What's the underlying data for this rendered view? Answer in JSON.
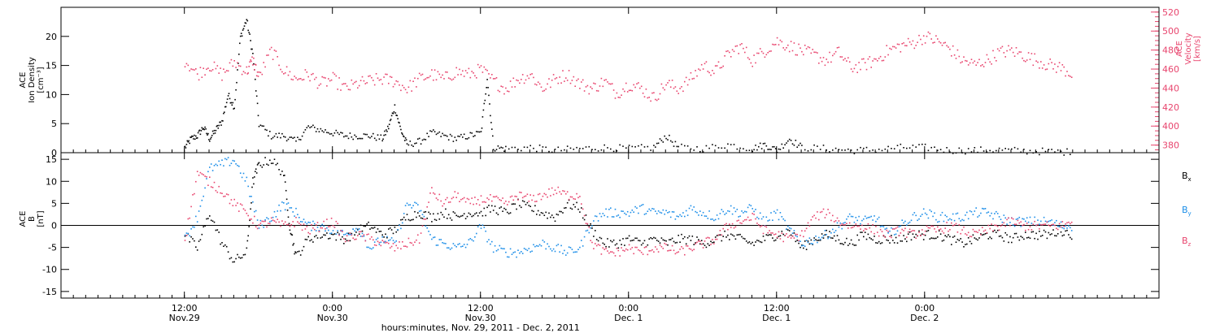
{
  "chart_data": [
    {
      "type": "scatter",
      "title": "",
      "ylabel_lines": [
        "ACE",
        "Ion Density",
        "[cm⁻³]"
      ],
      "ylim": [
        0,
        25
      ],
      "yticks": [
        0,
        5,
        10,
        15,
        20
      ],
      "right_axis": {
        "ylabel_lines": [
          "ACE",
          "Velocity",
          "[km/s]"
        ],
        "ylim": [
          372,
          525
        ],
        "yticks": [
          380,
          400,
          420,
          440,
          460,
          480,
          500,
          520
        ],
        "color": "#e8456e"
      },
      "series": [
        {
          "name": "",
          "axis": "left",
          "color": "#000000",
          "x": [
            0.0,
            0.5,
            1.0,
            1.5,
            2.0,
            2.5,
            3.0,
            3.5,
            4.0,
            4.5,
            5.0,
            5.5,
            6.0,
            7.0,
            8.0,
            9.0,
            10.0,
            11.0,
            12.0,
            13.0,
            14.0,
            15.0,
            16.0,
            16.5,
            17.0,
            17.5,
            18.0,
            19.0,
            20.0,
            21.0,
            22.0,
            23.0,
            24.0,
            24.5,
            25.0,
            26.0,
            28.0,
            30.0,
            32.0,
            34.0,
            36.0,
            38.0,
            39.0,
            40.0,
            42.0,
            44.0,
            46.0,
            47.0,
            48.0,
            49.0,
            50.0,
            52.0,
            54.0,
            56.0,
            58.0,
            60.0,
            62.0,
            64.0,
            66.0,
            68.0,
            70.0,
            72.0
          ],
          "y": [
            1.0,
            2.5,
            3.0,
            4.5,
            2.5,
            4.0,
            5.5,
            10.0,
            8.0,
            20.0,
            23.0,
            17.0,
            5.0,
            3.0,
            3.0,
            2.0,
            4.5,
            4.0,
            3.5,
            3.0,
            3.0,
            3.0,
            2.5,
            4.5,
            8.0,
            4.0,
            1.5,
            2.0,
            3.5,
            3.0,
            2.5,
            3.0,
            3.5,
            13.0,
            1.0,
            0.8,
            1.0,
            0.5,
            0.8,
            1.0,
            0.8,
            1.0,
            3.0,
            1.0,
            0.8,
            1.5,
            0.8,
            1.5,
            0.5,
            2.5,
            1.0,
            0.8,
            0.5,
            0.6,
            1.0,
            1.0,
            0.5,
            0.5,
            0.6,
            0.4,
            0.3,
            0.2
          ]
        },
        {
          "name": "",
          "axis": "right",
          "color": "#e8456e",
          "x": [
            0.0,
            1.0,
            2.0,
            3.0,
            4.0,
            5.0,
            5.5,
            6.0,
            7.0,
            8.0,
            9.0,
            10.0,
            11.0,
            12.0,
            13.0,
            14.0,
            15.0,
            16.0,
            17.0,
            18.0,
            19.0,
            20.0,
            21.0,
            22.0,
            23.0,
            24.0,
            25.0,
            26.0,
            27.0,
            28.0,
            29.0,
            30.0,
            31.0,
            32.0,
            33.0,
            34.0,
            35.0,
            36.0,
            37.0,
            38.0,
            39.0,
            40.0,
            41.0,
            42.0,
            43.0,
            44.0,
            45.0,
            46.0,
            47.0,
            48.0,
            49.0,
            50.0,
            51.0,
            52.0,
            53.0,
            54.0,
            55.0,
            56.0,
            57.0,
            58.0,
            59.0,
            60.0,
            61.0,
            62.0,
            63.0,
            64.0,
            65.0,
            66.0,
            67.0,
            68.0,
            69.0,
            70.0,
            71.0,
            72.0
          ],
          "y": [
            470,
            455,
            465,
            455,
            468,
            458,
            470,
            452,
            480,
            460,
            450,
            455,
            445,
            450,
            440,
            445,
            448,
            450,
            448,
            440,
            450,
            455,
            450,
            458,
            455,
            460,
            448,
            440,
            450,
            455,
            440,
            450,
            455,
            445,
            440,
            448,
            435,
            445,
            440,
            430,
            445,
            440,
            450,
            465,
            458,
            475,
            485,
            470,
            480,
            490,
            485,
            480,
            475,
            470,
            478,
            462,
            465,
            470,
            480,
            485,
            488,
            495,
            490,
            482,
            470,
            465,
            470,
            478,
            480,
            475,
            470,
            465,
            462,
            455
          ]
        }
      ]
    },
    {
      "type": "scatter",
      "title": "",
      "ylabel_lines": [
        "ACE",
        "B",
        "[nT]"
      ],
      "ylim": [
        -16.5,
        16.5
      ],
      "yticks": [
        -15,
        -10,
        -5,
        0,
        5,
        10,
        15
      ],
      "legend_placement": "right",
      "legend": [
        {
          "label": "Bx",
          "color": "#000000"
        },
        {
          "label": "By",
          "color": "#1c8ee8"
        },
        {
          "label": "Bz",
          "color": "#e8456e"
        }
      ],
      "series": [
        {
          "name": "Bx",
          "color": "#000000",
          "x": [
            0.0,
            1.0,
            2.0,
            3.0,
            4.0,
            5.0,
            5.5,
            6.0,
            7.0,
            8.0,
            8.5,
            9.0,
            10.0,
            11.0,
            12.0,
            13.0,
            14.0,
            15.0,
            16.0,
            17.0,
            18.0,
            19.0,
            20.0,
            21.0,
            22.0,
            23.0,
            24.0,
            25.0,
            26.0,
            27.0,
            28.0,
            29.0,
            30.0,
            31.0,
            32.0,
            33.0,
            34.0,
            35.0,
            36.0,
            37.0,
            38.0,
            39.0,
            40.0,
            41.0,
            42.0,
            43.0,
            44.0,
            45.0,
            46.0,
            47.0,
            48.0,
            49.0,
            50.0,
            51.0,
            52.0,
            53.0,
            54.0,
            55.0,
            56.0,
            57.0,
            58.0,
            59.0,
            60.0,
            61.0,
            62.0,
            63.0,
            64.0,
            65.0,
            66.0,
            67.0,
            68.0,
            69.0,
            70.0,
            71.0,
            72.0
          ],
          "y": [
            -2,
            -5,
            3,
            -4,
            -8,
            -6,
            10,
            14,
            15,
            12,
            0,
            -7,
            -3,
            -2,
            -2,
            -3,
            -1,
            0,
            -2,
            -1,
            2,
            3,
            2,
            3,
            2,
            3,
            3,
            4,
            3,
            5,
            4,
            3,
            2,
            5,
            4,
            -1,
            -4,
            -4,
            -3,
            -4,
            -3,
            -4,
            -3,
            -3,
            -4,
            -3,
            -2,
            -3,
            -4,
            -3,
            -2,
            -1,
            -5,
            -3,
            -2,
            -3,
            -4,
            -2,
            -3,
            -3,
            -3,
            -2,
            -2,
            -2,
            -3,
            -4,
            -3,
            -2,
            -2,
            -3,
            -2,
            -2,
            -2,
            -1,
            -2
          ]
        },
        {
          "name": "By",
          "color": "#1c8ee8",
          "x": [
            0.0,
            1.0,
            2.0,
            3.0,
            4.0,
            5.0,
            6.0,
            7.0,
            8.0,
            9.0,
            10.0,
            11.0,
            12.0,
            13.0,
            14.0,
            15.0,
            16.0,
            17.0,
            18.0,
            19.0,
            20.0,
            21.0,
            22.0,
            23.0,
            24.0,
            25.0,
            26.0,
            27.0,
            28.0,
            29.0,
            30.0,
            31.0,
            32.0,
            33.0,
            34.0,
            35.0,
            36.0,
            37.0,
            38.0,
            39.0,
            40.0,
            41.0,
            42.0,
            43.0,
            44.0,
            45.0,
            46.0,
            47.0,
            48.0,
            49.0,
            50.0,
            51.0,
            52.0,
            53.0,
            54.0,
            55.0,
            56.0,
            57.0,
            58.0,
            59.0,
            60.0,
            61.0,
            62.0,
            63.0,
            64.0,
            65.0,
            66.0,
            67.0,
            68.0,
            69.0,
            70.0,
            71.0,
            72.0
          ],
          "y": [
            -3,
            2,
            13,
            14,
            15,
            10,
            0,
            2,
            5,
            3,
            0,
            0,
            -1,
            -2,
            0,
            -5,
            -3,
            -4,
            5,
            4,
            -3,
            -4,
            -5,
            -4,
            0,
            -5,
            -6,
            -6,
            -5,
            -4,
            -5,
            -6,
            -5,
            1,
            3,
            3,
            3,
            4,
            3,
            3,
            2,
            4,
            3,
            2,
            4,
            3,
            4,
            1,
            3,
            -1,
            -4,
            -3,
            -2,
            0,
            2,
            1,
            2,
            -2,
            0,
            2,
            3,
            2,
            2,
            2,
            3,
            3,
            2,
            1,
            1,
            1,
            1,
            0,
            0
          ]
        },
        {
          "name": "Bz",
          "color": "#e8456e",
          "x": [
            0.0,
            1.0,
            2.0,
            3.0,
            4.0,
            5.0,
            6.0,
            7.0,
            8.0,
            9.0,
            10.0,
            11.0,
            12.0,
            13.0,
            14.0,
            15.0,
            16.0,
            17.0,
            18.0,
            19.0,
            20.0,
            21.0,
            22.0,
            23.0,
            24.0,
            25.0,
            26.0,
            27.0,
            28.0,
            29.0,
            30.0,
            31.0,
            32.0,
            33.0,
            34.0,
            35.0,
            36.0,
            37.0,
            38.0,
            39.0,
            40.0,
            41.0,
            42.0,
            43.0,
            44.0,
            45.0,
            46.0,
            47.0,
            48.0,
            49.0,
            50.0,
            51.0,
            52.0,
            53.0,
            54.0,
            55.0,
            56.0,
            57.0,
            58.0,
            59.0,
            60.0,
            61.0,
            62.0,
            63.0,
            64.0,
            65.0,
            66.0,
            67.0,
            68.0,
            69.0,
            70.0,
            71.0,
            72.0
          ],
          "y": [
            -3,
            12,
            10,
            8,
            5,
            3,
            0,
            1,
            0,
            1,
            -1,
            0,
            1,
            -3,
            -2,
            -3,
            -4,
            -5,
            -4,
            -3,
            8,
            5,
            7,
            5,
            6,
            6,
            5,
            7,
            6,
            7,
            8,
            7,
            7,
            -4,
            -6,
            -6,
            -5,
            -6,
            -5,
            -5,
            -6,
            -5,
            -4,
            -3,
            0,
            1,
            2,
            -1,
            -2,
            -3,
            -2,
            2,
            3,
            1,
            0,
            0,
            -1,
            -2,
            -1,
            -2,
            -1,
            -1,
            0,
            -1,
            -2,
            -1,
            0,
            1,
            0,
            0,
            0,
            0,
            1
          ]
        }
      ]
    }
  ],
  "x_axis": {
    "range_hours": [
      -10,
      79
    ],
    "ticks": [
      {
        "hours": 0,
        "top": "12:00",
        "bottom": "Nov.29"
      },
      {
        "hours": 12,
        "top": "0:00",
        "bottom": "Nov.30"
      },
      {
        "hours": 24,
        "top": "12:00",
        "bottom": "Nov.30"
      },
      {
        "hours": 36,
        "top": "0:00",
        "bottom": "Dec. 1"
      },
      {
        "hours": 48,
        "top": "12:00",
        "bottom": "Dec. 1"
      },
      {
        "hours": 60,
        "top": "0:00",
        "bottom": "Dec. 2"
      }
    ],
    "label": "hours:minutes, Nov. 29, 2011 - Dec. 2, 2011"
  }
}
